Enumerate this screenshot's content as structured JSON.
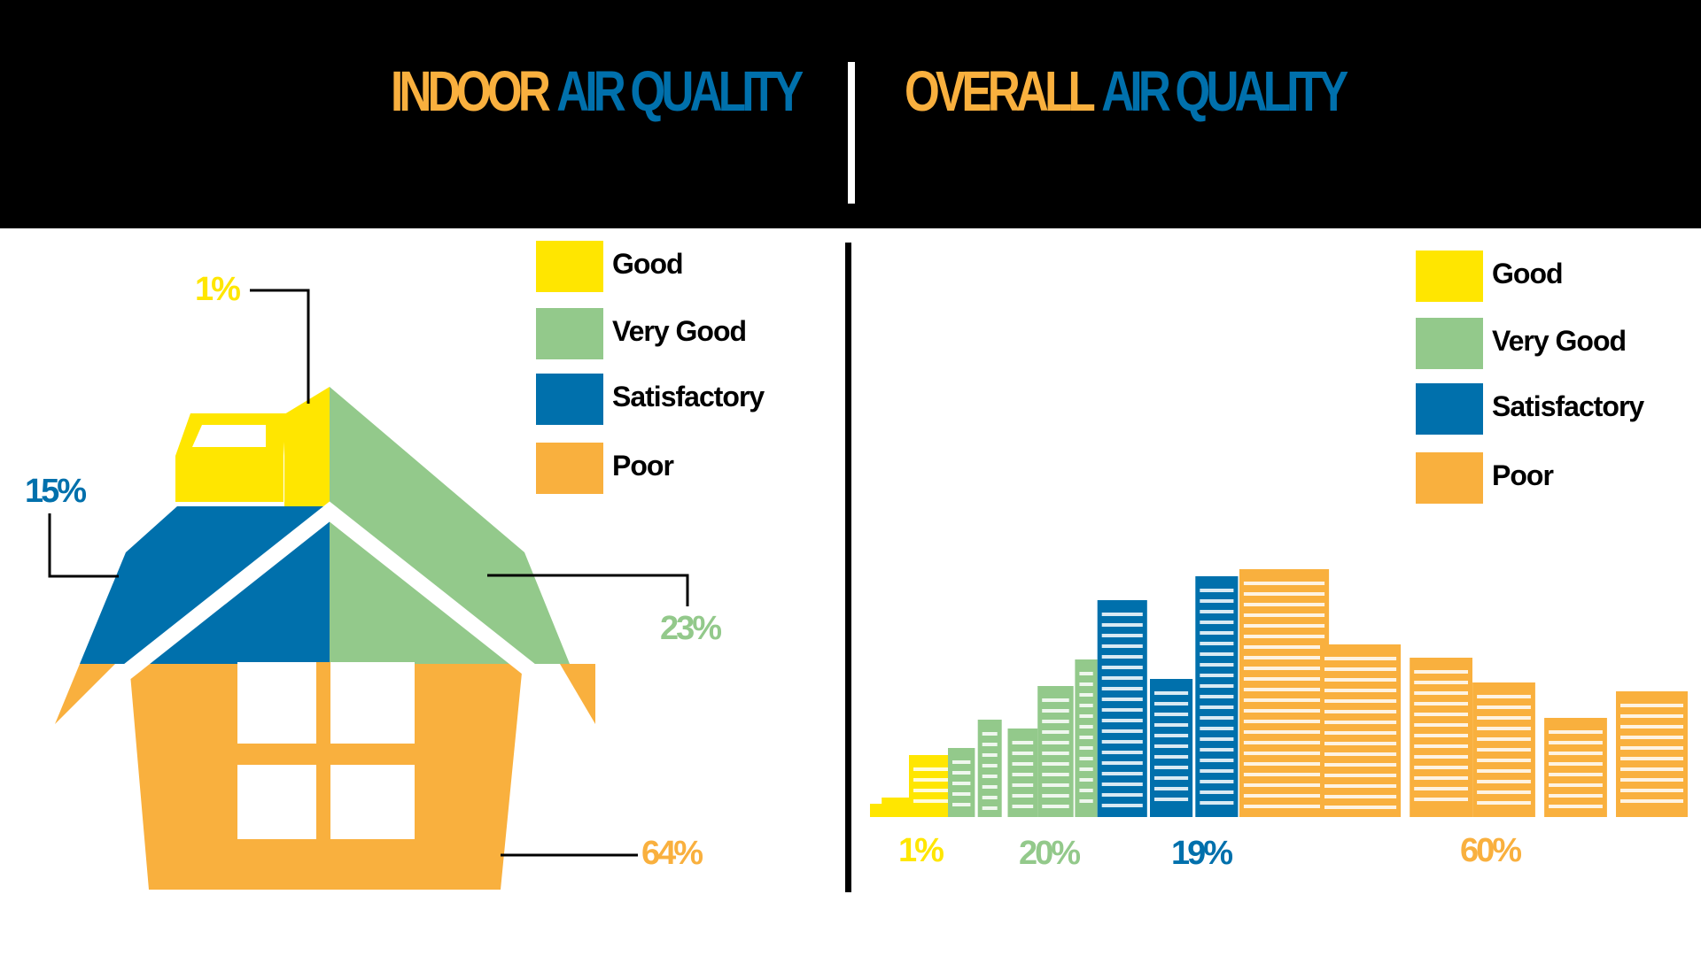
{
  "colors": {
    "good": "#FFE600",
    "very_good": "#93C98B",
    "satisfactory": "#0070AC",
    "poor": "#F9B03E",
    "title_orange": "#F9B03E",
    "title_blue": "#0070AC"
  },
  "chart_data": [
    {
      "type": "pie",
      "title_part1": "INDOOR",
      "title_part2": "AIR QUALITY",
      "legend": [
        "Good",
        "Very Good",
        "Satisfactory",
        "Poor"
      ],
      "categories": [
        "Good",
        "Very Good",
        "Satisfactory",
        "Poor"
      ],
      "values": [
        1,
        23,
        15,
        64
      ],
      "labels": [
        "1%",
        "23%",
        "15%",
        "64%"
      ]
    },
    {
      "type": "bar",
      "title_part1": "OVERALL",
      "title_part2": "AIR QUALITY",
      "legend": [
        "Good",
        "Very Good",
        "Satisfactory",
        "Poor"
      ],
      "categories": [
        "Good",
        "Very Good",
        "Satisfactory",
        "Poor"
      ],
      "values": [
        1,
        20,
        19,
        60
      ],
      "labels": [
        "1%",
        "20%",
        "19%",
        "60%"
      ]
    }
  ]
}
